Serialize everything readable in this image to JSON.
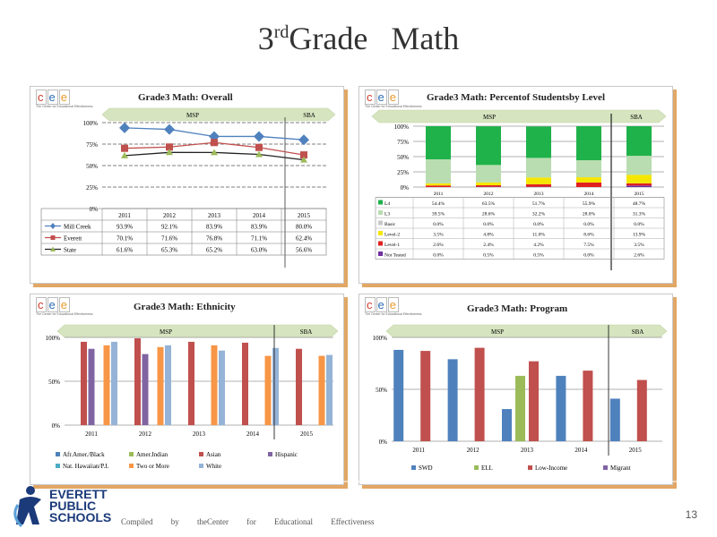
{
  "page": {
    "title_prefix": "3",
    "title_sup": "rd",
    "title_main": "Grade",
    "title_subject": "Math",
    "footer": "Compiled by theCenter for Educational Effectiveness",
    "page_number": "13",
    "logo": {
      "line1": "EVERETT",
      "line2": "PUBLIC",
      "line3": "SCHOOLS"
    },
    "cee": {
      "letters": [
        "c",
        "e",
        "e"
      ],
      "tagline": "The Center for Educational Effectiveness"
    }
  },
  "colors": {
    "arrow": "#d6e4bf",
    "accent_shadow": "#e2a765",
    "L4": "#1fb24a",
    "L3": "#b9ddb0",
    "Basic": "#c8c8c8",
    "Level2": "#f5e600",
    "Level1": "#e0201f",
    "NotTested": "#7030a0",
    "blue": "#4f81bd",
    "red": "#c0504d",
    "green": "#9bbb59",
    "purple": "#8064a2",
    "orange": "#f79646",
    "lightblue": "#95b3d7"
  },
  "chart_data": [
    {
      "id": "overall",
      "type": "line",
      "title": "Grade3 Math: Overall",
      "band_left": "MSP",
      "band_right": "SBA",
      "categories": [
        "2011",
        "2012",
        "2013",
        "2014",
        "2015"
      ],
      "yticks": [
        "0%",
        "25%",
        "50%",
        "75%",
        "100%"
      ],
      "ylim": [
        0,
        100
      ],
      "series": [
        {
          "name": "Mill Creek",
          "values": [
            93.9,
            92.1,
            83.9,
            83.9,
            80.0
          ],
          "labels": [
            "93.9%",
            "92.1%",
            "83.9%",
            "83.9%",
            "80.0%"
          ],
          "color": "#4f81bd",
          "marker": "diamond"
        },
        {
          "name": "Everett",
          "values": [
            70.1,
            71.6,
            76.8,
            71.1,
            62.4
          ],
          "labels": [
            "70.1%",
            "71.6%",
            "76.8%",
            "71.1%",
            "62.4%"
          ],
          "color": "#c0504d",
          "marker": "square"
        },
        {
          "name": "State",
          "values": [
            61.6,
            65.3,
            65.2,
            63.0,
            56.6
          ],
          "labels": [
            "61.6%",
            "65.3%",
            "65.2%",
            "63.0%",
            "56.6%"
          ],
          "color": "#9bbb59",
          "marker": "triangle"
        }
      ]
    },
    {
      "id": "level",
      "type": "bar",
      "stacked": true,
      "title": "Grade3 Math: Percentof Studentsby Level",
      "band_left": "MSP",
      "band_right": "SBA",
      "categories": [
        "2011",
        "2012",
        "2013",
        "2014",
        "2015"
      ],
      "yticks": [
        "0%",
        "25%",
        "50%",
        "75%",
        "100%"
      ],
      "ylim": [
        0,
        100
      ],
      "series": [
        {
          "name": "L4",
          "key": "L4",
          "values": [
            54.4,
            63.5,
            51.7,
            55.9,
            48.7
          ],
          "labels": [
            "54.4%",
            "63.5%",
            "51.7%",
            "55.9%",
            "48.7%"
          ]
        },
        {
          "name": "L3",
          "key": "L3",
          "values": [
            39.5,
            28.6,
            32.2,
            28.0,
            31.3
          ],
          "labels": [
            "39.5%",
            "28.6%",
            "32.2%",
            "28.0%",
            "31.3%"
          ]
        },
        {
          "name": "Basic",
          "key": "Basic",
          "values": [
            0,
            0,
            0,
            0,
            0
          ],
          "labels": [
            "0.0%",
            "0.0%",
            "0.0%",
            "0.0%",
            "0.0%"
          ]
        },
        {
          "name": "Level-2",
          "key": "Level2",
          "values": [
            3.5,
            4.8,
            11.0,
            8.6,
            13.9
          ],
          "labels": [
            "3.5%",
            "4.8%",
            "11.0%",
            "8.6%",
            "13.9%"
          ]
        },
        {
          "name": "Level-1",
          "key": "Level1",
          "values": [
            2.6,
            2.4,
            4.2,
            7.5,
            3.5
          ],
          "labels": [
            "2.6%",
            "2.4%",
            "4.2%",
            "7.5%",
            "3.5%"
          ]
        },
        {
          "name": "Not Tested",
          "key": "NotTested",
          "values": [
            0.0,
            0.5,
            0.5,
            0.0,
            2.6
          ],
          "labels": [
            "0.0%",
            "0.5%",
            "0.5%",
            "0.0%",
            "2.6%"
          ]
        }
      ]
    },
    {
      "id": "ethnicity",
      "type": "bar",
      "title": "Grade3 Math: Ethnicity",
      "band_left": "MSP",
      "band_right": "SBA",
      "categories": [
        "2011",
        "2012",
        "2013",
        "2014",
        "2015"
      ],
      "yticks": [
        "0%",
        "50%",
        "100%"
      ],
      "ylim": [
        0,
        100
      ],
      "series": [
        {
          "name": "Afr.Amer./Black",
          "color": "#4f81bd",
          "values": [
            null,
            null,
            null,
            null,
            null
          ]
        },
        {
          "name": "Amer.Indian",
          "color": "#9bbb59",
          "values": [
            null,
            null,
            null,
            null,
            null
          ]
        },
        {
          "name": "Asian",
          "color": "#c0504d",
          "values": [
            95,
            99,
            95,
            94,
            87
          ]
        },
        {
          "name": "Hispanic",
          "color": "#8064a2",
          "values": [
            87,
            81,
            null,
            null,
            null
          ]
        },
        {
          "name": "Nat. Hawaiian/P.I.",
          "color": "#4bacc6",
          "values": [
            null,
            null,
            null,
            null,
            null
          ]
        },
        {
          "name": "Two or More",
          "color": "#f79646",
          "values": [
            91,
            89,
            91,
            79,
            79
          ]
        },
        {
          "name": "White",
          "color": "#95b3d7",
          "values": [
            95,
            91,
            85,
            88,
            80
          ]
        }
      ]
    },
    {
      "id": "program",
      "type": "bar",
      "title": "Grade3 Math: Program",
      "band_left": "MSP",
      "band_right": "SBA",
      "categories": [
        "2011",
        "2012",
        "2013",
        "2014",
        "2015"
      ],
      "yticks": [
        "0%",
        "50%",
        "100%"
      ],
      "ylim": [
        0,
        100
      ],
      "series": [
        {
          "name": "SWD",
          "color": "#4f81bd",
          "values": [
            88,
            79,
            31,
            63,
            41
          ]
        },
        {
          "name": "ELL",
          "color": "#9bbb59",
          "values": [
            null,
            null,
            63,
            null,
            null
          ]
        },
        {
          "name": "Low-Income",
          "color": "#c0504d",
          "values": [
            87,
            90,
            77,
            68,
            59
          ]
        },
        {
          "name": "Migrant",
          "color": "#8064a2",
          "values": [
            null,
            null,
            null,
            null,
            null
          ]
        }
      ]
    }
  ]
}
